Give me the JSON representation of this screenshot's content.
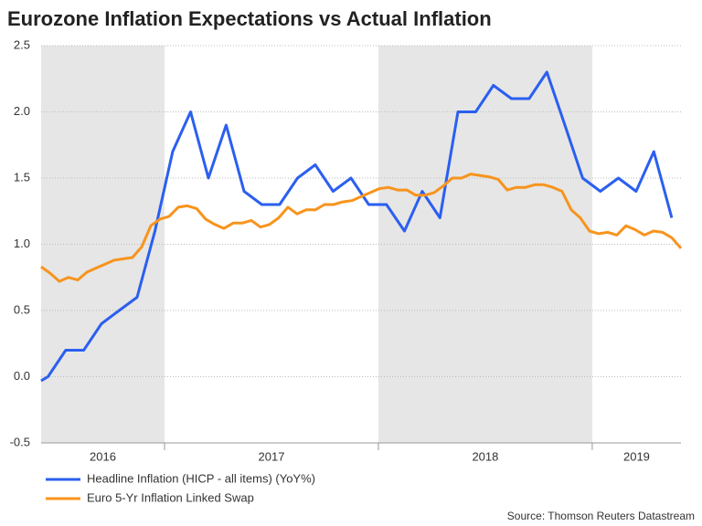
{
  "chart_data": {
    "type": "line",
    "title": "Eurozone Inflation Expectations vs Actual Inflation",
    "source": "Source: Thomson Reuters Datastream",
    "xlim": [
      2016.423,
      2019.415
    ],
    "ylim": [
      -0.5,
      2.5
    ],
    "yticks": [
      -0.5,
      {
        "value": 0,
        "label": "0.0"
      },
      0.5,
      {
        "value": 1,
        "label": "1.0"
      },
      1.5,
      {
        "value": 2,
        "label": "2.0"
      },
      2.5
    ],
    "grid": true,
    "x_periods": [
      {
        "label": "2016",
        "start": 2016.423,
        "end": 2017,
        "shaded": true
      },
      {
        "label": "2017",
        "start": 2017,
        "end": 2018,
        "shaded": false
      },
      {
        "label": "2018",
        "start": 2018,
        "end": 2019,
        "shaded": true
      },
      {
        "label": "2019",
        "start": 2019,
        "end": 2019.415,
        "shaded": false
      }
    ],
    "series": [
      {
        "name": "Headline Inflation (HICP - all items) (YoY%)",
        "color": "#2b5ff0",
        "x": [
          2016.423,
          2016.455,
          2016.538,
          2016.622,
          2016.705,
          2016.788,
          2016.872,
          2016.955,
          2017.038,
          2017.122,
          2017.205,
          2017.288,
          2017.372,
          2017.455,
          2017.538,
          2017.622,
          2017.705,
          2017.788,
          2017.872,
          2017.955,
          2018.038,
          2018.122,
          2018.205,
          2018.288,
          2018.372,
          2018.455,
          2018.538,
          2018.622,
          2018.705,
          2018.788,
          2018.872,
          2018.955,
          2019.038,
          2019.122,
          2019.205,
          2019.288,
          2019.372
        ],
        "values": [
          -0.03,
          0.0,
          0.2,
          0.2,
          0.4,
          0.5,
          0.6,
          1.1,
          1.7,
          2.0,
          1.5,
          1.9,
          1.4,
          1.3,
          1.3,
          1.5,
          1.6,
          1.4,
          1.5,
          1.3,
          1.3,
          1.1,
          1.4,
          1.2,
          2.0,
          2.0,
          2.2,
          2.1,
          2.1,
          2.3,
          1.9,
          1.5,
          1.4,
          1.5,
          1.4,
          1.7,
          1.2
        ]
      },
      {
        "name": "Euro 5-Yr Inflation Linked Swap",
        "color": "#f7941d",
        "x": [
          2016.423,
          2016.466,
          2016.508,
          2016.551,
          2016.594,
          2016.637,
          2016.679,
          2016.722,
          2016.765,
          2016.808,
          2016.85,
          2016.893,
          2016.936,
          2016.979,
          2017.021,
          2017.064,
          2017.107,
          2017.15,
          2017.192,
          2017.235,
          2017.278,
          2017.321,
          2017.363,
          2017.406,
          2017.449,
          2017.491,
          2017.534,
          2017.577,
          2017.62,
          2017.662,
          2017.705,
          2017.748,
          2017.791,
          2017.833,
          2017.876,
          2017.919,
          2017.962,
          2018.004,
          2018.047,
          2018.09,
          2018.133,
          2018.175,
          2018.218,
          2018.261,
          2018.303,
          2018.346,
          2018.389,
          2018.432,
          2018.474,
          2018.517,
          2018.56,
          2018.603,
          2018.645,
          2018.688,
          2018.731,
          2018.774,
          2018.816,
          2018.859,
          2018.902,
          2018.944,
          2018.987,
          2019.03,
          2019.073,
          2019.115,
          2019.158,
          2019.201,
          2019.244,
          2019.286,
          2019.329,
          2019.372,
          2019.415
        ],
        "values": [
          0.83,
          0.78,
          0.72,
          0.75,
          0.73,
          0.79,
          0.82,
          0.85,
          0.88,
          0.89,
          0.9,
          0.98,
          1.14,
          1.19,
          1.21,
          1.28,
          1.29,
          1.27,
          1.19,
          1.15,
          1.12,
          1.16,
          1.16,
          1.18,
          1.13,
          1.15,
          1.2,
          1.28,
          1.23,
          1.26,
          1.26,
          1.3,
          1.3,
          1.32,
          1.33,
          1.36,
          1.39,
          1.42,
          1.43,
          1.41,
          1.41,
          1.37,
          1.37,
          1.39,
          1.44,
          1.5,
          1.5,
          1.53,
          1.52,
          1.51,
          1.49,
          1.41,
          1.43,
          1.43,
          1.45,
          1.45,
          1.43,
          1.4,
          1.26,
          1.2,
          1.1,
          1.08,
          1.09,
          1.07,
          1.14,
          1.11,
          1.07,
          1.1,
          1.09,
          1.05,
          0.97
        ]
      }
    ]
  }
}
